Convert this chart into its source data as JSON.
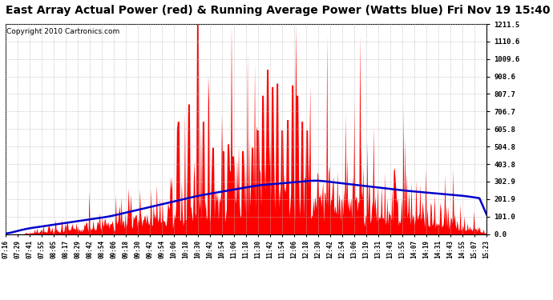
{
  "title": "East Array Actual Power (red) & Running Average Power (Watts blue) Fri Nov 19 15:40",
  "copyright": "Copyright 2010 Cartronics.com",
  "ylabel_values": [
    1211.5,
    1110.6,
    1009.6,
    908.6,
    807.7,
    706.7,
    605.8,
    504.8,
    403.8,
    302.9,
    201.9,
    101.0,
    0.0
  ],
  "x_labels": [
    "07:16",
    "07:29",
    "07:41",
    "07:55",
    "08:05",
    "08:17",
    "08:29",
    "08:42",
    "08:54",
    "09:06",
    "09:18",
    "09:30",
    "09:42",
    "09:54",
    "10:06",
    "10:18",
    "10:30",
    "10:42",
    "10:54",
    "11:06",
    "11:18",
    "11:30",
    "11:42",
    "11:54",
    "12:06",
    "12:18",
    "12:30",
    "12:42",
    "12:54",
    "13:06",
    "13:19",
    "13:31",
    "13:43",
    "13:55",
    "14:07",
    "14:19",
    "14:31",
    "14:43",
    "14:55",
    "15:07",
    "15:23"
  ],
  "ymax": 1211.5,
  "ymin": 0.0,
  "bg_color": "#ffffff",
  "grid_color": "#bbbbbb",
  "bar_color": "#ff0000",
  "avg_color": "#0000cc",
  "title_fontsize": 10,
  "copyright_fontsize": 6.5
}
